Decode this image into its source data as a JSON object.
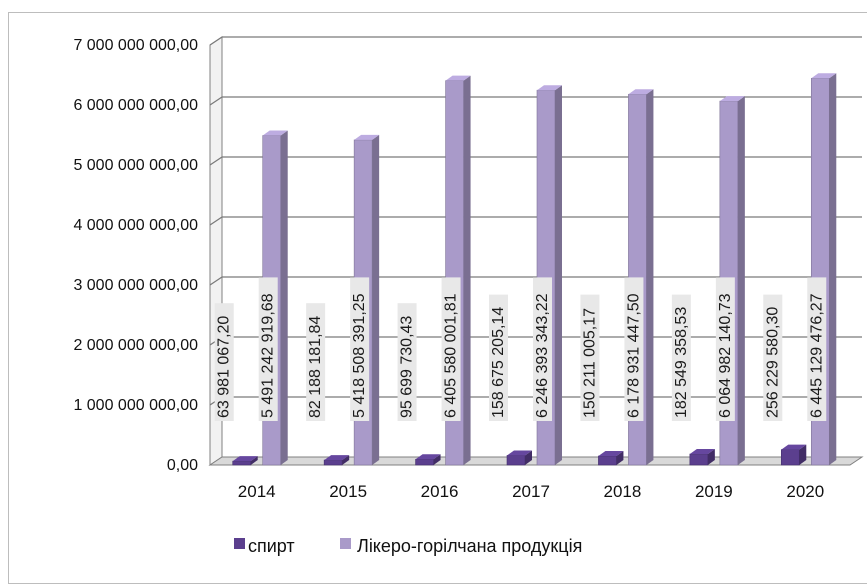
{
  "chart_data": {
    "type": "bar",
    "categories": [
      "2014",
      "2015",
      "2016",
      "2017",
      "2018",
      "2019",
      "2020"
    ],
    "series": [
      {
        "name": "спирт",
        "values": [
          63981067.2,
          82188181.84,
          95699730.43,
          158675205.14,
          150211005.17,
          182549358.53,
          256229580.3
        ],
        "labels": [
          "63 981 067,20",
          "82 188 181,84",
          "95 699 730,43",
          "158 675 205,14",
          "150 211 005,17",
          "182 549 358,53",
          "256 229 580,30"
        ],
        "color": "#5b3f8e"
      },
      {
        "name": "Лікеро-горілчана продукція",
        "values": [
          5491242919.68,
          5418508391.25,
          6405580001.81,
          6246393343.22,
          6178931447.5,
          6064982140.73,
          6445129476.27
        ],
        "labels": [
          "5 491 242 919,68",
          "5 418 508 391,25",
          "6 405 580 001,81",
          "6 246 393 343,22",
          "6 178 931 447,50",
          "6 064 982 140,73",
          "6 445 129 476,27"
        ],
        "color": "#a99ac9"
      }
    ],
    "yticks": [
      "0,00",
      "1 000 000 000,00",
      "2 000 000 000,00",
      "3 000 000 000,00",
      "4 000 000 000,00",
      "5 000 000 000,00",
      "6 000 000 000,00",
      "7 000 000 000,00"
    ],
    "ylim": [
      0,
      7000000000
    ],
    "grid": true,
    "legend": "bottom",
    "style": "3d-column"
  }
}
